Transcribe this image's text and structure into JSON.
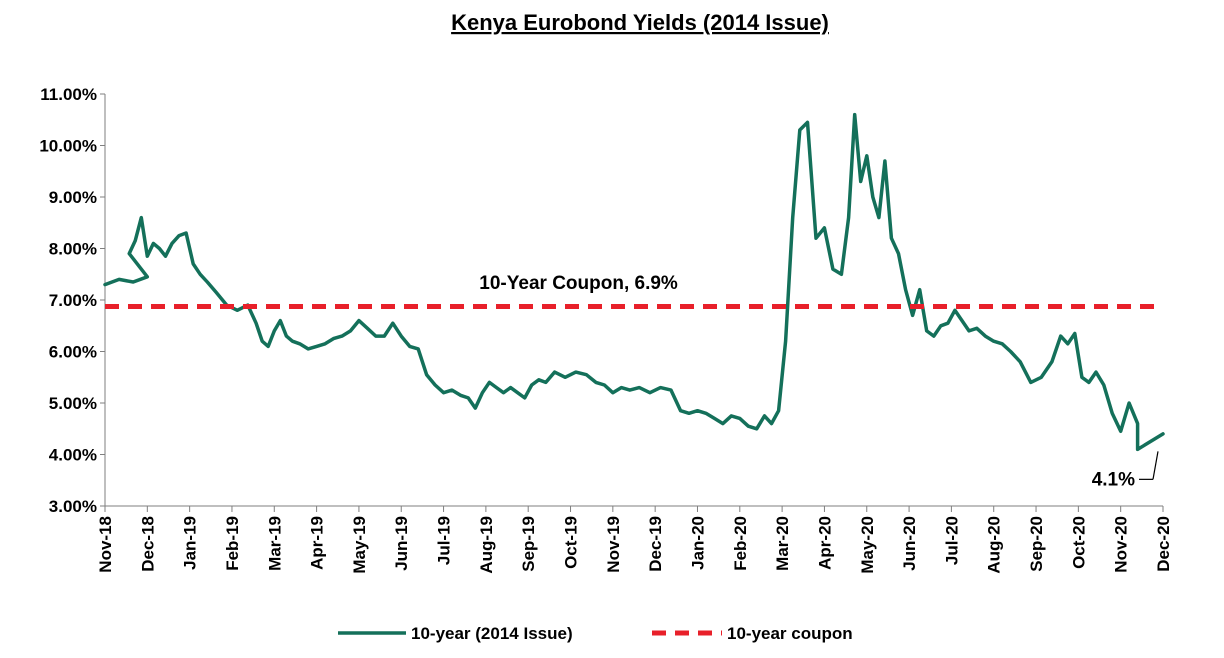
{
  "chart_data": {
    "type": "line",
    "title": "Kenya Eurobond Yields (2014 Issue)",
    "xlabel": "",
    "ylabel": "",
    "ylim": [
      3,
      11
    ],
    "y_ticks": [
      "3.00%",
      "4.00%",
      "5.00%",
      "6.00%",
      "7.00%",
      "8.00%",
      "9.00%",
      "10.00%",
      "11.00%"
    ],
    "x_ticks": [
      "Nov-18",
      "Dec-18",
      "Jan-19",
      "Feb-19",
      "Mar-19",
      "Apr-19",
      "May-19",
      "Jun-19",
      "Jul-19",
      "Aug-19",
      "Sep-19",
      "Oct-19",
      "Nov-19",
      "Dec-19",
      "Jan-20",
      "Feb-20",
      "Mar-20",
      "Apr-20",
      "May-20",
      "Jun-20",
      "Jul-20",
      "Aug-20",
      "Sep-20",
      "Oct-20",
      "Nov-20",
      "Dec-20"
    ],
    "grid": false,
    "legend": "bottom",
    "series": [
      {
        "name": "10-year (2014 Issue)",
        "color": "#14705a",
        "style": "solid",
        "points": [
          [
            "Nov-18",
            7.3
          ],
          [
            "Nov-18",
            7.4
          ],
          [
            "Nov-18",
            7.35
          ],
          [
            "Nov-18",
            7.45
          ],
          [
            "Dec-18",
            7.9
          ],
          [
            "Dec-18",
            8.15
          ],
          [
            "Dec-18",
            8.6
          ],
          [
            "Dec-18",
            7.85
          ],
          [
            "Dec-18",
            8.1
          ],
          [
            "Dec-18",
            8.0
          ],
          [
            "Dec-18",
            7.85
          ],
          [
            "Jan-19",
            8.1
          ],
          [
            "Jan-19",
            8.25
          ],
          [
            "Jan-19",
            8.3
          ],
          [
            "Jan-19",
            7.7
          ],
          [
            "Jan-19",
            7.5
          ],
          [
            "Jan-19",
            7.35
          ],
          [
            "Feb-19",
            7.15
          ],
          [
            "Feb-19",
            6.9
          ],
          [
            "Feb-19",
            6.8
          ],
          [
            "Feb-19",
            6.9
          ],
          [
            "Mar-19",
            6.55
          ],
          [
            "Mar-19",
            6.2
          ],
          [
            "Mar-19",
            6.1
          ],
          [
            "Mar-19",
            6.4
          ],
          [
            "Mar-19",
            6.6
          ],
          [
            "Mar-19",
            6.3
          ],
          [
            "Mar-19",
            6.2
          ],
          [
            "Apr-19",
            6.15
          ],
          [
            "Apr-19",
            6.05
          ],
          [
            "Apr-19",
            6.1
          ],
          [
            "Apr-19",
            6.15
          ],
          [
            "Apr-19",
            6.25
          ],
          [
            "May-19",
            6.3
          ],
          [
            "May-19",
            6.4
          ],
          [
            "May-19",
            6.6
          ],
          [
            "May-19",
            6.45
          ],
          [
            "May-19",
            6.3
          ],
          [
            "Jun-19",
            6.3
          ],
          [
            "Jun-19",
            6.55
          ],
          [
            "Jun-19",
            6.3
          ],
          [
            "Jun-19",
            6.1
          ],
          [
            "Jun-19",
            6.05
          ],
          [
            "Jul-19",
            5.55
          ],
          [
            "Jul-19",
            5.35
          ],
          [
            "Jul-19",
            5.2
          ],
          [
            "Jul-19",
            5.25
          ],
          [
            "Jul-19",
            5.15
          ],
          [
            "Aug-19",
            5.1
          ],
          [
            "Aug-19",
            4.9
          ],
          [
            "Aug-19",
            5.2
          ],
          [
            "Aug-19",
            5.4
          ],
          [
            "Aug-19",
            5.3
          ],
          [
            "Aug-19",
            5.2
          ],
          [
            "Sep-19",
            5.3
          ],
          [
            "Sep-19",
            5.2
          ],
          [
            "Sep-19",
            5.1
          ],
          [
            "Sep-19",
            5.35
          ],
          [
            "Sep-19",
            5.45
          ],
          [
            "Sep-19",
            5.4
          ],
          [
            "Oct-19",
            5.6
          ],
          [
            "Oct-19",
            5.5
          ],
          [
            "Oct-19",
            5.6
          ],
          [
            "Oct-19",
            5.55
          ],
          [
            "Nov-19",
            5.4
          ],
          [
            "Nov-19",
            5.35
          ],
          [
            "Nov-19",
            5.2
          ],
          [
            "Nov-19",
            5.3
          ],
          [
            "Nov-19",
            5.25
          ],
          [
            "Dec-19",
            5.3
          ],
          [
            "Dec-19",
            5.2
          ],
          [
            "Dec-19",
            5.3
          ],
          [
            "Dec-19",
            5.25
          ],
          [
            "Jan-20",
            4.85
          ],
          [
            "Jan-20",
            4.8
          ],
          [
            "Jan-20",
            4.85
          ],
          [
            "Jan-20",
            4.8
          ],
          [
            "Jan-20",
            4.7
          ],
          [
            "Feb-20",
            4.6
          ],
          [
            "Feb-20",
            4.75
          ],
          [
            "Feb-20",
            4.7
          ],
          [
            "Feb-20",
            4.55
          ],
          [
            "Feb-20",
            4.5
          ],
          [
            "Mar-20",
            4.75
          ],
          [
            "Mar-20",
            4.6
          ],
          [
            "Mar-20",
            4.85
          ],
          [
            "Mar-20",
            6.2
          ],
          [
            "Mar-20",
            8.6
          ],
          [
            "Mar-20",
            10.3
          ],
          [
            "Apr-20",
            10.45
          ],
          [
            "Apr-20",
            8.2
          ],
          [
            "Apr-20",
            8.4
          ],
          [
            "Apr-20",
            7.6
          ],
          [
            "Apr-20",
            7.5
          ],
          [
            "May-20",
            8.6
          ],
          [
            "May-20",
            10.6
          ],
          [
            "May-20",
            9.3
          ],
          [
            "May-20",
            9.8
          ],
          [
            "May-20",
            9.0
          ],
          [
            "May-20",
            8.6
          ],
          [
            "May-20",
            9.7
          ],
          [
            "Jun-20",
            8.2
          ],
          [
            "Jun-20",
            7.9
          ],
          [
            "Jun-20",
            7.2
          ],
          [
            "Jun-20",
            6.7
          ],
          [
            "Jun-20",
            7.2
          ],
          [
            "Jun-20",
            6.4
          ],
          [
            "Jul-20",
            6.3
          ],
          [
            "Jul-20",
            6.5
          ],
          [
            "Jul-20",
            6.55
          ],
          [
            "Jul-20",
            6.8
          ],
          [
            "Jul-20",
            6.6
          ],
          [
            "Jul-20",
            6.4
          ],
          [
            "Aug-20",
            6.45
          ],
          [
            "Aug-20",
            6.3
          ],
          [
            "Aug-20",
            6.2
          ],
          [
            "Aug-20",
            6.15
          ],
          [
            "Aug-20",
            6.0
          ],
          [
            "Sep-20",
            5.8
          ],
          [
            "Sep-20",
            5.4
          ],
          [
            "Sep-20",
            5.5
          ],
          [
            "Sep-20",
            5.8
          ],
          [
            "Oct-20",
            6.3
          ],
          [
            "Oct-20",
            6.15
          ],
          [
            "Oct-20",
            6.35
          ],
          [
            "Oct-20",
            5.5
          ],
          [
            "Oct-20",
            5.4
          ],
          [
            "Oct-20",
            5.6
          ],
          [
            "Nov-20",
            5.35
          ],
          [
            "Nov-20",
            4.8
          ],
          [
            "Nov-20",
            4.45
          ],
          [
            "Nov-20",
            5.0
          ],
          [
            "Nov-20",
            4.6
          ],
          [
            "Dec-20",
            4.1
          ],
          [
            "Dec-20",
            4.4
          ]
        ]
      },
      {
        "name": "10-year coupon",
        "color": "#e8202a",
        "style": "dashed",
        "constant": 6.875
      }
    ],
    "annotations": [
      {
        "text": "10-Year Coupon, 6.9%",
        "x": "Jul-19",
        "y": 7.25
      },
      {
        "text": "4.1%",
        "x": "Dec-20",
        "y": 4.1
      }
    ]
  }
}
